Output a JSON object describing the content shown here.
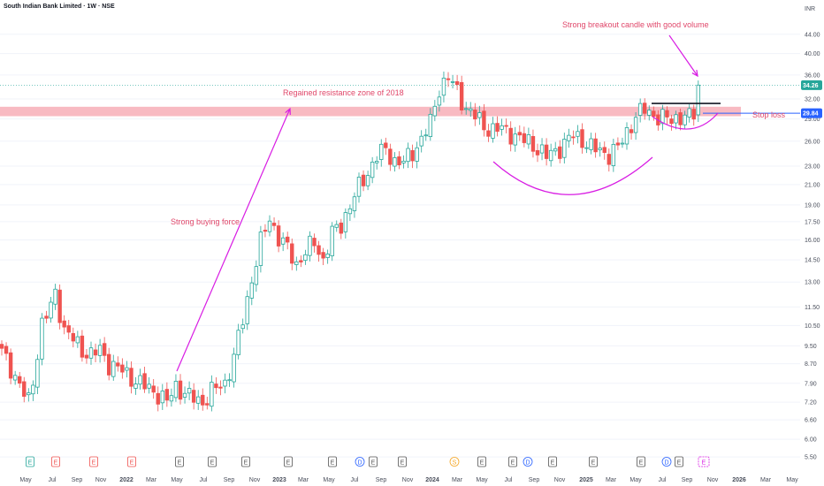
{
  "header": {
    "title": "South Indian Bank Limited · 1W · NSE",
    "currency": "INR"
  },
  "colors": {
    "up": "#26a69a",
    "down": "#ef5350",
    "annotation_text": "#e0476a",
    "annotation_line": "#d81ce3",
    "zone": "#f5a3ad",
    "last_price_bg": "#26a69a",
    "stop_loss_bg": "#2962ff",
    "resistance_line": "#131722"
  },
  "chart_data": {
    "type": "candlestick",
    "y_scale": "log",
    "ylim": [
      5.2,
      49
    ],
    "y_ticks": [
      "5.50",
      "6.00",
      "6.60",
      "7.20",
      "7.90",
      "8.70",
      "9.50",
      "10.50",
      "11.50",
      "13.00",
      "14.50",
      "16.00",
      "17.50",
      "19.00",
      "21.00",
      "23.00",
      "26.00",
      "29.00",
      "32.00",
      "36.00",
      "40.00",
      "44.00"
    ],
    "x_ticks": [
      "May",
      "Jul",
      "Sep",
      "Nov",
      "2022",
      "Mar",
      "May",
      "Jul",
      "Sep",
      "Nov",
      "2023",
      "Mar",
      "May",
      "Jul",
      "Sep",
      "Nov",
      "2024",
      "Mar",
      "May",
      "Jul",
      "Sep",
      "Nov",
      "2025",
      "Mar",
      "May",
      "Jul",
      "Sep",
      "Nov",
      "2026",
      "Mar",
      "May"
    ],
    "last_price": "34.26",
    "stop_loss_price": "29.84",
    "resistance_zone": [
      29.4,
      30.8
    ],
    "breakout_level": 31.3,
    "price_path": [
      [
        0,
        9.2
      ],
      [
        3,
        8.2
      ],
      [
        5,
        7.5
      ],
      [
        6,
        7.2
      ],
      [
        7,
        8.0
      ],
      [
        9,
        10.6
      ],
      [
        11,
        11.5
      ],
      [
        12,
        12.3
      ],
      [
        14,
        10.3
      ],
      [
        16,
        9.8
      ],
      [
        18,
        9.3
      ],
      [
        20,
        9.1
      ],
      [
        22,
        9.3
      ],
      [
        24,
        8.7
      ],
      [
        27,
        8.4
      ],
      [
        30,
        8.0
      ],
      [
        33,
        7.7
      ],
      [
        35,
        7.5
      ],
      [
        37,
        7.2
      ],
      [
        39,
        7.8
      ],
      [
        42,
        7.4
      ],
      [
        45,
        7.2
      ],
      [
        47,
        7.6
      ],
      [
        50,
        7.9
      ],
      [
        52,
        9.0
      ],
      [
        54,
        10.8
      ],
      [
        56,
        13.2
      ],
      [
        58,
        15.8
      ],
      [
        60,
        17.8
      ],
      [
        62,
        16.2
      ],
      [
        64,
        15.3
      ],
      [
        66,
        14.2
      ],
      [
        68,
        15.1
      ],
      [
        70,
        15.8
      ],
      [
        72,
        14.5
      ],
      [
        74,
        16.5
      ],
      [
        76,
        17.2
      ],
      [
        78,
        19.0
      ],
      [
        80,
        20.7
      ],
      [
        82,
        22.3
      ],
      [
        84,
        24.2
      ],
      [
        86,
        24.9
      ],
      [
        88,
        23.6
      ],
      [
        90,
        23.4
      ],
      [
        92,
        24.6
      ],
      [
        94,
        26.3
      ],
      [
        96,
        28.4
      ],
      [
        98,
        33.8
      ],
      [
        100,
        35.6
      ],
      [
        102,
        33.2
      ],
      [
        104,
        30.6
      ],
      [
        106,
        29.4
      ],
      [
        108,
        28.0
      ],
      [
        110,
        27.5
      ],
      [
        112,
        27.6
      ],
      [
        114,
        27.1
      ],
      [
        116,
        26.3
      ],
      [
        118,
        25.9
      ],
      [
        120,
        25.1
      ],
      [
        122,
        24.1
      ],
      [
        124,
        24.8
      ],
      [
        126,
        25.7
      ],
      [
        128,
        26.8
      ],
      [
        130,
        26.2
      ],
      [
        132,
        25.2
      ],
      [
        134,
        24.8
      ],
      [
        136,
        24.4
      ],
      [
        138,
        25.1
      ],
      [
        140,
        27.2
      ],
      [
        142,
        29.4
      ],
      [
        144,
        30.4
      ],
      [
        146,
        29.6
      ],
      [
        148,
        29.1
      ],
      [
        150,
        28.9
      ],
      [
        152,
        29.4
      ],
      [
        154,
        29.2
      ],
      [
        155,
        29.8
      ],
      [
        156,
        34.26
      ]
    ],
    "annotations": [
      {
        "text": "Strong breakout candle with good volume"
      },
      {
        "text": "Regained resistance zone of 2018"
      },
      {
        "text": "Strong buying force"
      },
      {
        "text": "Stop loss"
      }
    ],
    "events": [
      "E",
      "E",
      "E",
      "E",
      "E",
      "E",
      "E",
      "E",
      "E",
      "D",
      "E",
      "E",
      "S",
      "E",
      "E",
      "D",
      "E",
      "E",
      "E",
      "D",
      "E"
    ]
  }
}
